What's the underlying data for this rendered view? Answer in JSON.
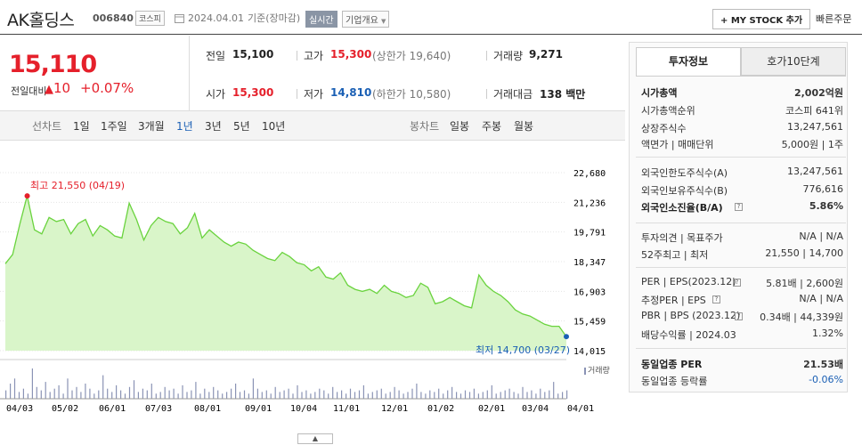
{
  "header": {
    "stock_name": "AK홀딩스",
    "stock_code": "006840",
    "market": "코스피",
    "date": "2024.04.01",
    "date_note": "기준(장마감)",
    "realtime": "실시간",
    "company_menu": "기업개요",
    "mystock_button": "+ MY STOCK 추가",
    "buy_button": "빠른주문"
  },
  "price": {
    "current": "15,110",
    "diff_label": "전일대비",
    "diff_value": "10",
    "diff_pct": "+0.07%"
  },
  "summary": {
    "prev_close_label": "전일",
    "prev_close": "15,100",
    "high_label": "고가",
    "high": "15,300",
    "upper_limit": "(상한가 19,640)",
    "volume_label": "거래량",
    "volume": "9,271",
    "open_label": "시가",
    "open": "15,300",
    "low_label": "저가",
    "low": "14,810",
    "lower_limit": "(하한가 10,580)",
    "amount_label": "거래대금",
    "amount": "138 백만"
  },
  "periods": {
    "line_label": "선차트",
    "line_items": [
      "1일",
      "1주일",
      "3개월",
      "1년",
      "3년",
      "5년",
      "10년"
    ],
    "selected": "1년",
    "candle_label": "봉차트",
    "candle_items": [
      "일봉",
      "주봉",
      "월봉"
    ]
  },
  "chart_data": {
    "type": "area",
    "series": [
      {
        "values": [
          18250,
          18700,
          20200,
          21550,
          19900,
          19700,
          20500,
          20300,
          20400,
          19700,
          20200,
          20400,
          19600,
          20100,
          19900,
          19600,
          19500,
          21200,
          20400,
          19400,
          20100,
          20500,
          20300,
          20200,
          19700,
          20000,
          20700,
          19500,
          19900,
          19600,
          19300,
          19100,
          19300,
          19200,
          18900,
          18700,
          18500,
          18400,
          18800,
          18600,
          18300,
          18200,
          17900,
          18100,
          17600,
          17500,
          17800,
          17200,
          17000,
          16900,
          17000,
          16800,
          17200,
          16900,
          16800,
          16600,
          16700,
          17300,
          17100,
          16300,
          16400,
          16600,
          16400,
          16200,
          16100,
          17700,
          17200,
          16900,
          16700,
          16400,
          16000,
          15800,
          15700,
          15500,
          15300,
          15200,
          15200,
          14700
        ]
      }
    ],
    "x_ticks": [
      "04/03",
      "05/02",
      "06/01",
      "07/03",
      "08/01",
      "09/01",
      "10/04",
      "11/01",
      "12/01",
      "01/02",
      "02/01",
      "03/04",
      "04/01"
    ],
    "y_ticks": [
      "22,680",
      "21,236",
      "19,791",
      "18,347",
      "16,903",
      "15,459",
      "14,015"
    ],
    "ylim": [
      14015,
      22680
    ],
    "max_label": "최고 21,550 (04/19)",
    "min_label": "최저 14,700 (03/27)",
    "volume_label": "거래량",
    "volume_values": [
      5,
      9,
      12,
      4,
      6,
      3,
      18,
      7,
      5,
      10,
      4,
      6,
      8,
      3,
      12,
      5,
      7,
      4,
      9,
      6,
      3,
      5,
      14,
      6,
      4,
      8,
      5,
      3,
      7,
      11,
      4,
      6,
      5,
      9,
      3,
      4,
      7,
      5,
      6,
      3,
      8,
      4,
      5,
      10,
      3,
      6,
      4,
      7,
      5,
      3,
      4,
      6,
      9,
      4,
      5,
      3,
      12,
      6,
      4,
      5,
      3,
      7,
      4,
      5,
      6,
      3,
      8,
      4,
      5,
      3,
      4,
      6,
      5,
      3,
      7,
      4,
      5,
      3,
      6,
      4,
      5,
      8,
      3,
      4,
      5,
      6,
      3,
      4,
      7,
      5,
      3,
      4,
      6,
      9,
      4,
      3,
      5,
      4,
      6,
      3,
      5,
      7,
      4,
      3,
      5,
      4,
      6,
      3,
      4,
      5,
      8,
      3,
      4,
      5,
      6,
      4,
      3,
      7,
      4,
      5,
      3,
      6,
      4,
      5,
      10,
      3,
      4,
      5
    ]
  },
  "side_panel": {
    "tabs": [
      "투자정보",
      "호가10단계"
    ],
    "rows": [
      {
        "label": "시가총액",
        "value": "2,002억원"
      },
      {
        "label": "시가총액순위",
        "value": "코스피 641위"
      },
      {
        "label": "상장주식수",
        "value": "13,247,561"
      },
      {
        "label": "액면가 | 매매단위",
        "value": "5,000원 | 1주"
      },
      {
        "label": "외국인한도주식수(A)",
        "value": "13,247,561"
      },
      {
        "label": "외국인보유주식수(B)",
        "value": "776,616"
      },
      {
        "label": "외국인소진율(B/A)",
        "value": "5.86%"
      },
      {
        "label": "투자의견 | 목표주가",
        "value": "N/A | N/A"
      },
      {
        "label": "52주최고 | 최저",
        "value": "21,550 | 14,700"
      },
      {
        "label": "PER | EPS(2023.12)",
        "value": "5.81배 | 2,600원"
      },
      {
        "label": "추정PER | EPS",
        "value": "N/A | N/A"
      },
      {
        "label": "PBR | BPS (2023.12)",
        "value": "0.34배 | 44,339원"
      },
      {
        "label": "배당수익률 | 2024.03",
        "value": "1.32%"
      },
      {
        "label": "동일업종 PER",
        "value": "21.53배"
      },
      {
        "label": "동일업종 등락률",
        "value": "-0.06%"
      }
    ]
  },
  "collapse_icon": "chevron-up-icon"
}
